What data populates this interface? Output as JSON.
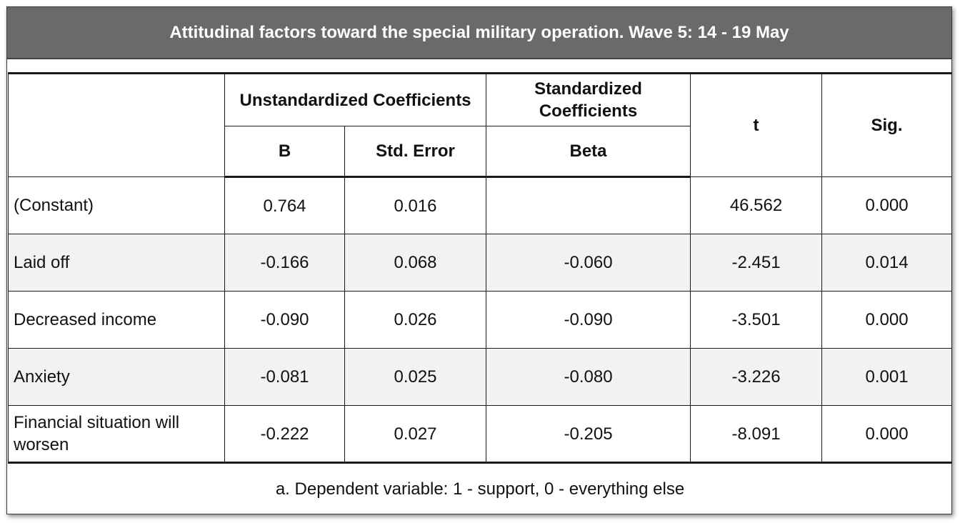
{
  "chart_data": {
    "type": "table",
    "title": "Attitudinal factors toward the special military operation. Wave 5: 14 - 19 May",
    "header": {
      "unstd_group": "Unstandardized Coefficients",
      "std_group": "Standardized Coefficients",
      "b": "B",
      "std_error": "Std. Error",
      "beta": "Beta",
      "t": "t",
      "sig": "Sig."
    },
    "rows": [
      {
        "label": "(Constant)",
        "b": "0.764",
        "se": "0.016",
        "beta": "",
        "t": "46.562",
        "sig": "0.000"
      },
      {
        "label": "Laid off",
        "b": "-0.166",
        "se": "0.068",
        "beta": "-0.060",
        "t": "-2.451",
        "sig": "0.014"
      },
      {
        "label": "Decreased income",
        "b": "-0.090",
        "se": "0.026",
        "beta": "-0.090",
        "t": "-3.501",
        "sig": "0.000"
      },
      {
        "label": "Anxiety",
        "b": "-0.081",
        "se": "0.025",
        "beta": "-0.080",
        "t": "-3.226",
        "sig": "0.001"
      },
      {
        "label": "Financial situation will worsen",
        "b": "-0.222",
        "se": "0.027",
        "beta": "-0.205",
        "t": "-8.091",
        "sig": "0.000"
      }
    ],
    "footnote": "a. Dependent variable: 1 - support, 0 - everything else"
  },
  "colors": {
    "title_background": "#6a6a6a",
    "title_text": "#ffffff",
    "alt_row": "#f2f2f2",
    "border": "#1a1a1a"
  }
}
